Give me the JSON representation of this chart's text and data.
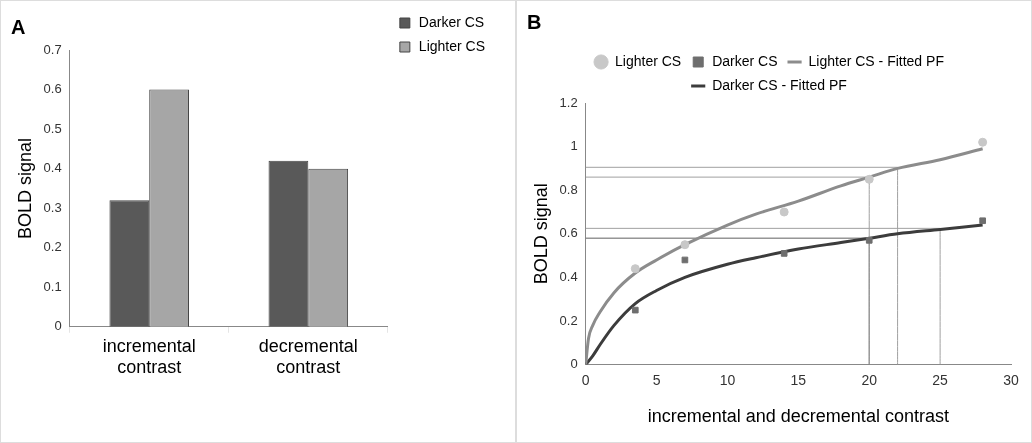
{
  "chart_data": [
    {
      "type": "bar",
      "title": "A",
      "ylabel": "BOLD signal",
      "categories": [
        "incremental contrast",
        "decremental contrast"
      ],
      "series": [
        {
          "name": "Darker CS",
          "color": "#595959",
          "values": [
            0.32,
            0.42
          ]
        },
        {
          "name": "Lighter CS",
          "color": "#a6a6a6",
          "values": [
            0.6,
            0.4
          ]
        }
      ],
      "ylim": [
        0,
        0.7
      ],
      "yticks": [
        0,
        0.1,
        0.2,
        0.3,
        0.4,
        0.5,
        0.6,
        0.7
      ],
      "grid": false,
      "legend": "top right"
    },
    {
      "type": "scatter",
      "title": "B",
      "xlabel": "incremental and decremental contrast",
      "ylabel": "BOLD signal",
      "series": [
        {
          "name": "Lighter CS",
          "color": "#c8c8c8",
          "marker": "circle",
          "x": [
            3.5,
            7,
            14,
            20,
            28
          ],
          "values": [
            0.44,
            0.55,
            0.7,
            0.85,
            1.02
          ]
        },
        {
          "name": "Lighter CS - Fitted PF",
          "type": "line",
          "marker": "none",
          "color": "#8c8c8c",
          "x": [
            0,
            0.2,
            0.5,
            1,
            2,
            3.5,
            5,
            7,
            10,
            12,
            15,
            18,
            20,
            22,
            25,
            28
          ],
          "values": [
            0,
            0.12,
            0.18,
            0.24,
            0.33,
            0.42,
            0.48,
            0.55,
            0.64,
            0.69,
            0.75,
            0.82,
            0.86,
            0.9,
            0.94,
            0.99
          ]
        },
        {
          "name": "Darker CS",
          "color": "#6e6e6e",
          "marker": "square",
          "x": [
            3.5,
            7,
            14,
            20,
            28
          ],
          "values": [
            0.25,
            0.48,
            0.51,
            0.57,
            0.66
          ]
        },
        {
          "name": "Darker CS - Fitted PF",
          "type": "line",
          "marker": "none",
          "color": "#3c3c3c",
          "x": [
            0,
            0.5,
            1,
            2,
            3.5,
            5,
            7,
            10,
            12,
            15,
            18,
            20,
            22,
            25,
            28
          ],
          "values": [
            0,
            0.04,
            0.09,
            0.18,
            0.28,
            0.34,
            0.4,
            0.46,
            0.49,
            0.53,
            0.56,
            0.58,
            0.6,
            0.62,
            0.64
          ]
        },
        {
          "type": "line",
          "marker": "none",
          "color": "#a0a0a0",
          "x": [
            0,
            22,
            22
          ],
          "values": [
            0.905,
            0.905,
            0
          ]
        },
        {
          "type": "line",
          "marker": "none",
          "color": "#a0a0a0",
          "x": [
            0,
            20,
            20
          ],
          "values": [
            0.86,
            0.86,
            0
          ]
        },
        {
          "type": "line",
          "marker": "none",
          "color": "#a0a0a0",
          "x": [
            0,
            25,
            25
          ],
          "values": [
            0.625,
            0.625,
            0
          ]
        },
        {
          "type": "line",
          "marker": "none",
          "color": "#606060",
          "x": [
            0,
            20,
            20
          ],
          "values": [
            0.58,
            0.58,
            0
          ]
        }
      ],
      "xlim": [
        0,
        30
      ],
      "xticks": [
        0,
        5,
        10,
        15,
        20,
        25,
        30
      ],
      "ylim": [
        0,
        1.2
      ],
      "yticks": [
        0,
        0.2,
        0.4,
        0.6,
        0.8,
        1,
        1.2
      ],
      "grid": false,
      "legend": "top"
    }
  ]
}
